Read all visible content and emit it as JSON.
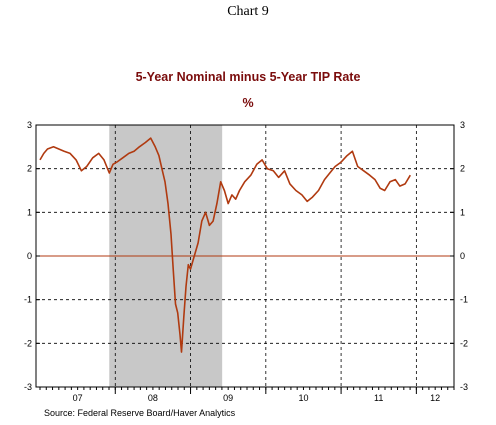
{
  "caption": "Chart 9",
  "source": "Source:  Federal Reserve Board/Haver Analytics",
  "chart_data": {
    "type": "line",
    "title": "5-Year Nominal minus 5-Year TIP  Rate",
    "unit": "%",
    "xlabel": "",
    "ylabel": "",
    "x_tick_labels": [
      "07",
      "08",
      "09",
      "10",
      "11",
      "12"
    ],
    "y_tick_labels": [
      "3",
      "2",
      "1",
      "0",
      "-1",
      "-2",
      "-3"
    ],
    "y_ticks": [
      3,
      2,
      1,
      0,
      -1,
      -2,
      -3
    ],
    "ylim": [
      -3,
      3
    ],
    "xlim": [
      2007.0,
      2012.5
    ],
    "grid": true,
    "recession_shading": [
      2007.92,
      2009.42
    ],
    "colors": {
      "series": "#b03a10",
      "zero_line": "#b03a10",
      "shading": "#c8c8c8"
    },
    "series": [
      {
        "name": "",
        "x": [
          2007.0,
          2007.05,
          2007.1,
          2007.18,
          2007.25,
          2007.32,
          2007.4,
          2007.48,
          2007.55,
          2007.62,
          2007.7,
          2007.78,
          2007.85,
          2007.92,
          2007.97,
          2008.02,
          2008.1,
          2008.18,
          2008.25,
          2008.32,
          2008.4,
          2008.47,
          2008.53,
          2008.58,
          2008.62,
          2008.66,
          2008.7,
          2008.74,
          2008.77,
          2008.8,
          2008.83,
          2008.86,
          2008.88,
          2008.91,
          2008.94,
          2008.97,
          2009.0,
          2009.05,
          2009.1,
          2009.15,
          2009.2,
          2009.25,
          2009.3,
          2009.35,
          2009.4,
          2009.45,
          2009.5,
          2009.55,
          2009.6,
          2009.65,
          2009.72,
          2009.8,
          2009.88,
          2009.95,
          2010.02,
          2010.1,
          2010.17,
          2010.25,
          2010.32,
          2010.4,
          2010.48,
          2010.55,
          2010.62,
          2010.7,
          2010.78,
          2010.85,
          2010.92,
          2011.0,
          2011.08,
          2011.15,
          2011.22,
          2011.3,
          2011.38,
          2011.45,
          2011.52,
          2011.58,
          2011.65,
          2011.72,
          2011.78,
          2011.85,
          2011.92
        ],
        "values": [
          2.2,
          2.35,
          2.45,
          2.5,
          2.45,
          2.4,
          2.35,
          2.2,
          1.95,
          2.05,
          2.25,
          2.35,
          2.2,
          1.9,
          2.1,
          2.15,
          2.25,
          2.35,
          2.4,
          2.5,
          2.6,
          2.7,
          2.5,
          2.3,
          2.0,
          1.7,
          1.2,
          0.5,
          -0.3,
          -1.1,
          -1.3,
          -1.8,
          -2.2,
          -1.4,
          -0.7,
          -0.2,
          -0.3,
          0.0,
          0.3,
          0.8,
          1.0,
          0.7,
          0.8,
          1.2,
          1.7,
          1.5,
          1.2,
          1.4,
          1.3,
          1.5,
          1.7,
          1.85,
          2.1,
          2.2,
          2.0,
          1.95,
          1.8,
          1.95,
          1.65,
          1.5,
          1.4,
          1.25,
          1.35,
          1.5,
          1.75,
          1.9,
          2.05,
          2.15,
          2.3,
          2.4,
          2.05,
          1.95,
          1.85,
          1.75,
          1.55,
          1.5,
          1.7,
          1.75,
          1.6,
          1.65,
          1.85
        ]
      }
    ]
  }
}
